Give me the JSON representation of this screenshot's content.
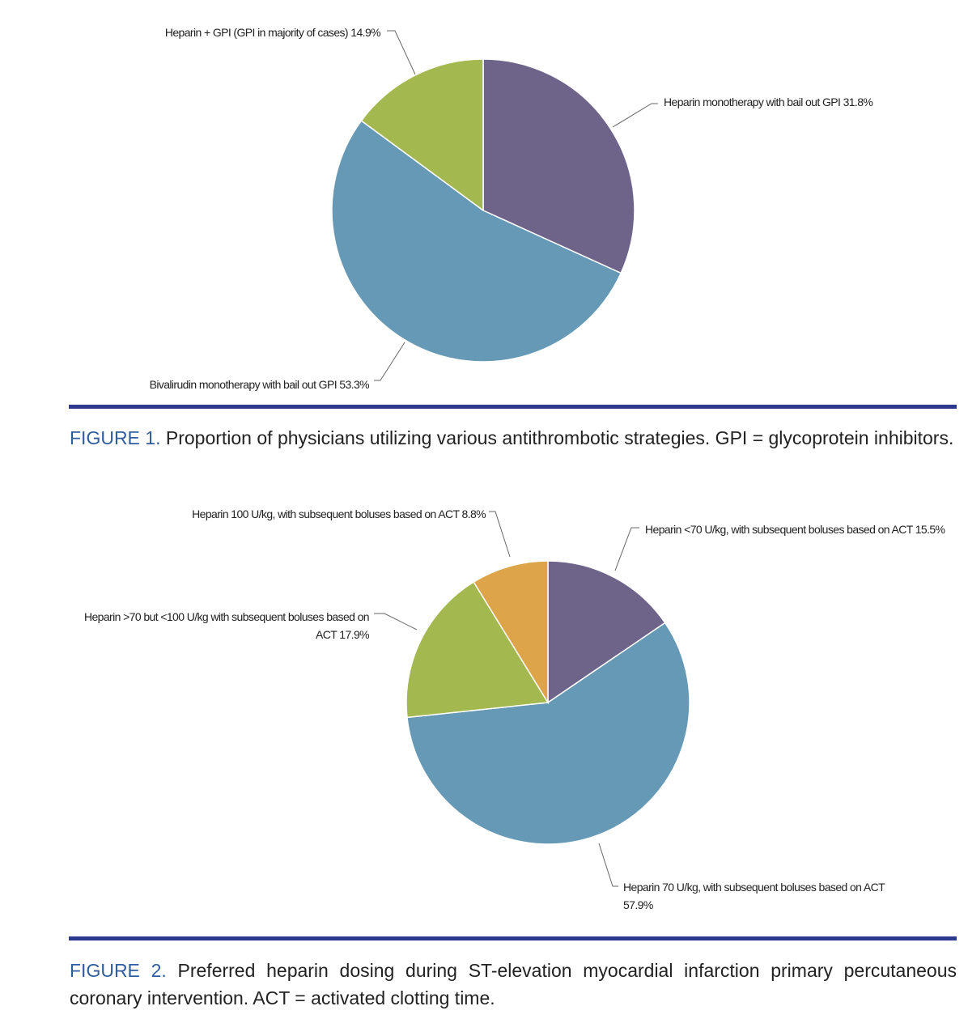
{
  "chart_data": [
    {
      "type": "pie",
      "categories": [
        "Heparin monotherapy with bail out GPI",
        "Bivalirudin monotherapy with bail out GPI",
        "Heparin + GPI (GPI in majority of cases)"
      ],
      "values": [
        31.8,
        53.3,
        14.9
      ],
      "value_labels": [
        "31.8%",
        "53.3%",
        "14.9%"
      ],
      "colors": [
        "#6e6389",
        "#6699b5",
        "#a3b94f"
      ]
    },
    {
      "type": "pie",
      "categories": [
        "Heparin <70 U/kg, with subsequent boluses based on ACT",
        "Heparin 70 U/kg, with subsequent boluses based on ACT",
        "Heparin >70 but <100 U/kg with subsequent boluses based on ACT",
        "Heparin 100 U/kg, with subsequent boluses based on ACT"
      ],
      "values": [
        15.5,
        57.9,
        17.9,
        8.8
      ],
      "value_labels": [
        "15.5%",
        "57.9%",
        "17.9%",
        "8.8%"
      ],
      "colors": [
        "#6e6389",
        "#6699b5",
        "#a3b94f",
        "#dda44a"
      ]
    }
  ],
  "figures": [
    {
      "label": "FIGURE 1.",
      "caption": "Proportion of physicians utilizing various antithrombotic strategies. GPI = glycoprotein inhibitors."
    },
    {
      "label": "FIGURE 2.",
      "caption": "Preferred heparin dosing during ST-elevation myocardial infarction primary percutaneous coronary intervention. ACT = activated clotting time."
    }
  ]
}
